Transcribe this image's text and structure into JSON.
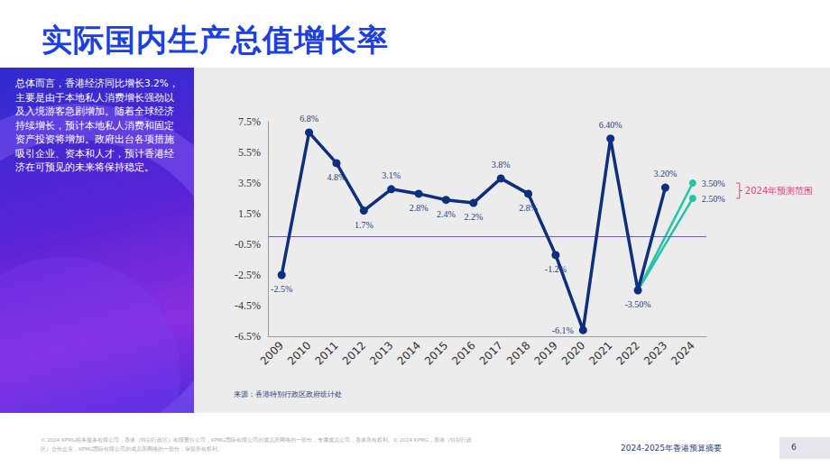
{
  "page": {
    "title": "实际国内生产总值增长率",
    "summary": "总体而言，香港经济同比增长3.2%，主要是由于本地私人消费增长强劲以及入境游客急剧增加。随着全球经济持续增长，预计本地私人消费和固定资产投资将增加。政府出台各项措施吸引企业、资本和人才，预计香港经济在可预见的未来将保持稳定。",
    "source": "来源：香港特别行政区政府统计处",
    "footer_note": "© 2024 KPMG税务服务有限公司，香港（特别行政区）有限责任公司，KPMG国际有限公司的成员所网络的一部分，专属成员公司，香港所有权利。© 2024 KPMG，香港（特别行政区）合伙企业，KPMG国际有限公司的成员所网络的一部分，保留所有权利。",
    "footer_title": "2024-2025年香港预算摘要",
    "page_number": "6"
  },
  "chart_data": {
    "type": "line",
    "categories": [
      "2009",
      "2010",
      "2011",
      "2012",
      "2013",
      "2014",
      "2015",
      "2016",
      "2017",
      "2018",
      "2019",
      "2020",
      "2021",
      "2022",
      "2023",
      "2024"
    ],
    "series": [
      {
        "color": "#0d2f7e",
        "marker": "circle",
        "line_style": "solid",
        "values": [
          -2.5,
          6.8,
          4.8,
          1.7,
          3.1,
          2.8,
          2.4,
          2.2,
          3.8,
          2.8,
          -1.2,
          -6.1,
          6.4,
          -3.5,
          3.2,
          null
        ],
        "value_labels": [
          "-2.5%",
          "6.8%",
          "4.8%",
          "1.7%",
          "3.1%",
          "2.8%",
          "2.4%",
          "2.2%",
          "3.8%",
          "2.8%",
          "-1.2%",
          "-6.1%",
          "6.40%",
          "-3.50%",
          "3.20%",
          null
        ]
      },
      {
        "color": "#25c2a8",
        "marker": "circle",
        "line_style": "solid",
        "values": [
          null,
          null,
          null,
          null,
          null,
          null,
          null,
          null,
          null,
          null,
          null,
          null,
          null,
          -3.5,
          null,
          3.5
        ],
        "value_labels": [
          null,
          null,
          null,
          null,
          null,
          null,
          null,
          null,
          null,
          null,
          null,
          null,
          null,
          null,
          null,
          "3.50%"
        ]
      },
      {
        "color": "#25c2a8",
        "marker": "circle",
        "line_style": "solid",
        "values": [
          null,
          null,
          null,
          null,
          null,
          null,
          null,
          null,
          null,
          null,
          null,
          null,
          null,
          -3.5,
          null,
          2.5
        ],
        "value_labels": [
          null,
          null,
          null,
          null,
          null,
          null,
          null,
          null,
          null,
          null,
          null,
          null,
          null,
          null,
          null,
          "2.50%"
        ]
      }
    ],
    "ylim": [
      -6.5,
      7.5
    ],
    "yticks": [
      {
        "value": -6.5,
        "label": "-6.5%"
      },
      {
        "value": -4.5,
        "label": "-4.5%"
      },
      {
        "value": -2.5,
        "label": "-2.5%"
      },
      {
        "value": -0.5,
        "label": "-0.5%"
      },
      {
        "value": 1.5,
        "label": "1.5%"
      },
      {
        "value": 3.5,
        "label": "3.5%"
      },
      {
        "value": 5.5,
        "label": "5.5%"
      },
      {
        "value": 7.5,
        "label": "7.5%"
      }
    ],
    "reference_line": {
      "value": 0,
      "color": "#7b4de8"
    },
    "annotations": [
      {
        "text": "2024年预测范围",
        "color": "#e8417f"
      }
    ],
    "grid": false,
    "data_labels": true
  }
}
